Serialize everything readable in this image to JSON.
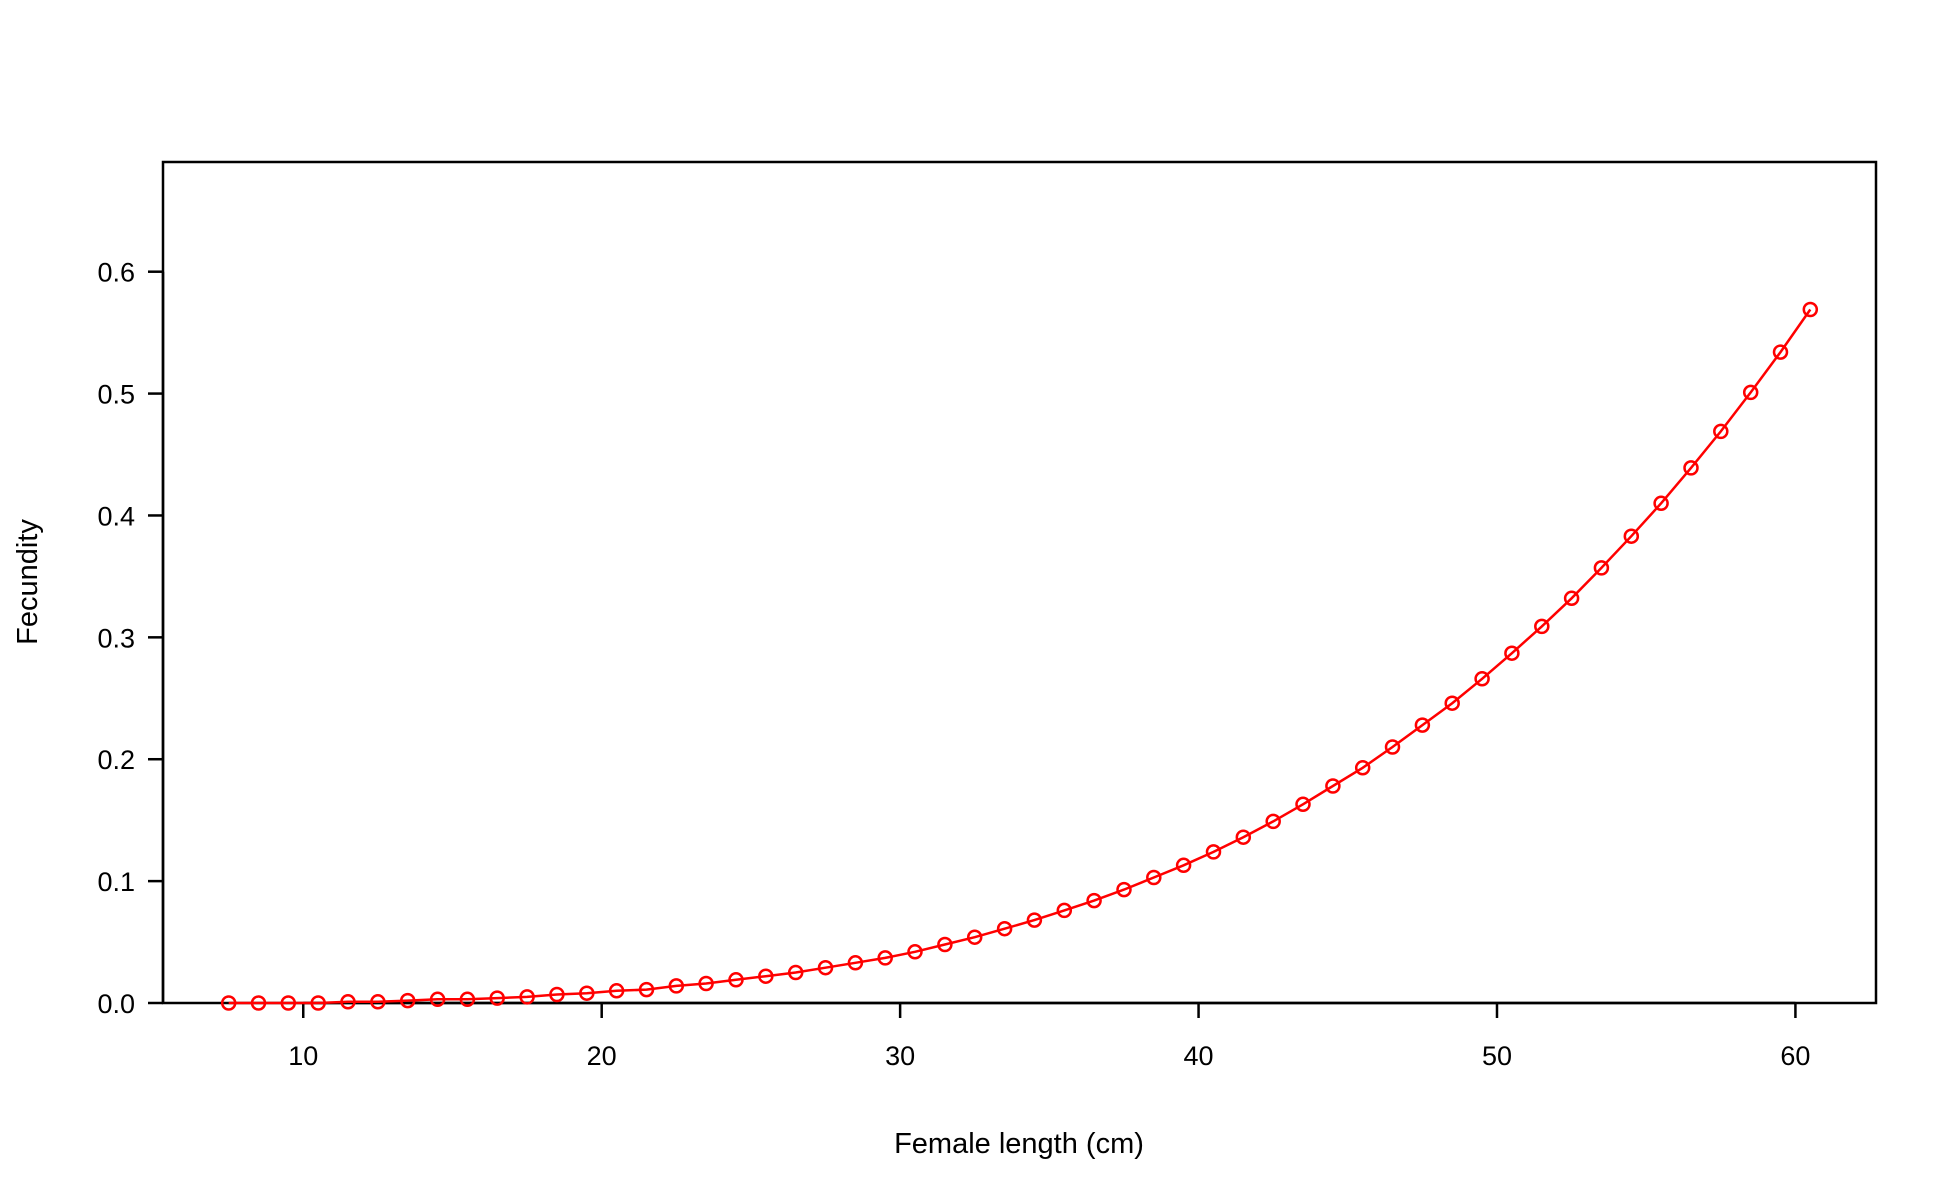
{
  "chart_data": {
    "type": "line",
    "title": "",
    "xlabel": "Female length (cm)",
    "ylabel": "Fecundity",
    "xlim": [
      5.3,
      62.7
    ],
    "ylim": [
      0.0,
      0.69
    ],
    "xticks": [
      10,
      20,
      30,
      40,
      50,
      60
    ],
    "yticks": [
      0.0,
      0.1,
      0.2,
      0.3,
      0.4,
      0.5,
      0.6
    ],
    "ytick_labels": [
      "0.0",
      "0.1",
      "0.2",
      "0.3",
      "0.4",
      "0.5",
      "0.6"
    ],
    "grid": false,
    "legend": "none",
    "color": "#ff0000",
    "markers": "open-circle",
    "series": [
      {
        "x": [
          7.5,
          8.5,
          9.5,
          10.5,
          11.5,
          12.5,
          13.5,
          14.5,
          15.5,
          16.5,
          17.5,
          18.5,
          19.5,
          20.5,
          21.5,
          22.5,
          23.5,
          24.5,
          25.5,
          26.5,
          27.5,
          28.5,
          29.5,
          30.5,
          31.5,
          32.5,
          33.5,
          34.5,
          35.5,
          36.5,
          37.5,
          38.5,
          39.5,
          40.5,
          41.5,
          42.5,
          43.5,
          44.5,
          45.5,
          46.5,
          47.5,
          48.5,
          49.5,
          50.5,
          51.5,
          52.5,
          53.5,
          54.5,
          55.5,
          56.5,
          57.5,
          58.5,
          59.5,
          60.5
        ],
        "values": [
          0.0,
          0.0,
          0.0,
          0.0,
          0.001,
          0.001,
          0.002,
          0.003,
          0.003,
          0.004,
          0.005,
          0.007,
          0.008,
          0.01,
          0.011,
          0.014,
          0.016,
          0.019,
          0.022,
          0.025,
          0.029,
          0.033,
          0.037,
          0.042,
          0.048,
          0.054,
          0.061,
          0.068,
          0.076,
          0.084,
          0.093,
          0.103,
          0.113,
          0.124,
          0.136,
          0.149,
          0.163,
          0.178,
          0.193,
          0.21,
          0.228,
          0.246,
          0.266,
          0.287,
          0.309,
          0.332,
          0.357,
          0.383,
          0.41,
          0.439,
          0.469,
          0.501,
          0.534,
          0.569
        ]
      }
    ]
  }
}
